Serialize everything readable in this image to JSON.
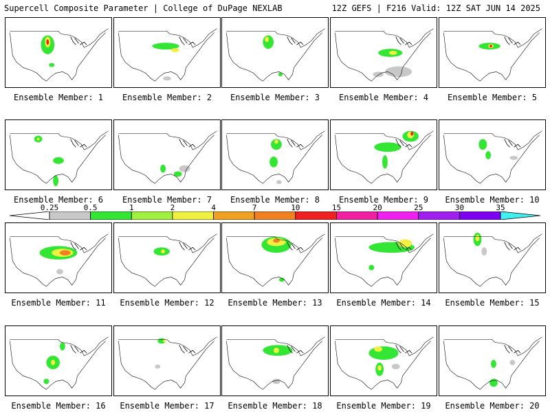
{
  "header": {
    "title_left": "Supercell Composite Parameter | College of DuPage NEXLAB",
    "title_right": "12Z GEFS | F216 Valid: 12Z SAT JUN 14 2025"
  },
  "legend": {
    "labels": [
      "0.25",
      "0.5",
      "1",
      "2",
      "4",
      "7",
      "10",
      "15",
      "20",
      "25",
      "30",
      "35"
    ],
    "colors": [
      "#c8c8c8",
      "#33e633",
      "#a0f040",
      "#f0f040",
      "#f0a020",
      "#f08020",
      "#f02020",
      "#f020a0",
      "#f020f0",
      "#a020f0",
      "#7d00f0",
      "#b070e0",
      "#40f0f0"
    ]
  },
  "panels": [
    {
      "caption": "Ensemble Member: 1"
    },
    {
      "caption": "Ensemble Member: 2"
    },
    {
      "caption": "Ensemble Member: 3"
    },
    {
      "caption": "Ensemble Member: 4"
    },
    {
      "caption": "Ensemble Member: 5"
    },
    {
      "caption": "Ensemble Member: 6"
    },
    {
      "caption": "Ensemble Member: 7"
    },
    {
      "caption": "Ensemble Member: 8"
    },
    {
      "caption": "Ensemble Member: 9"
    },
    {
      "caption": "Ensemble Member: 10"
    },
    {
      "caption": "Ensemble Member: 11"
    },
    {
      "caption": "Ensemble Member: 12"
    },
    {
      "caption": "Ensemble Member: 13"
    },
    {
      "caption": "Ensemble Member: 14"
    },
    {
      "caption": "Ensemble Member: 15"
    },
    {
      "caption": "Ensemble Member: 16"
    },
    {
      "caption": "Ensemble Member: 17"
    },
    {
      "caption": "Ensemble Member: 18"
    },
    {
      "caption": "Ensemble Member: 19"
    },
    {
      "caption": "Ensemble Member: 20"
    }
  ]
}
